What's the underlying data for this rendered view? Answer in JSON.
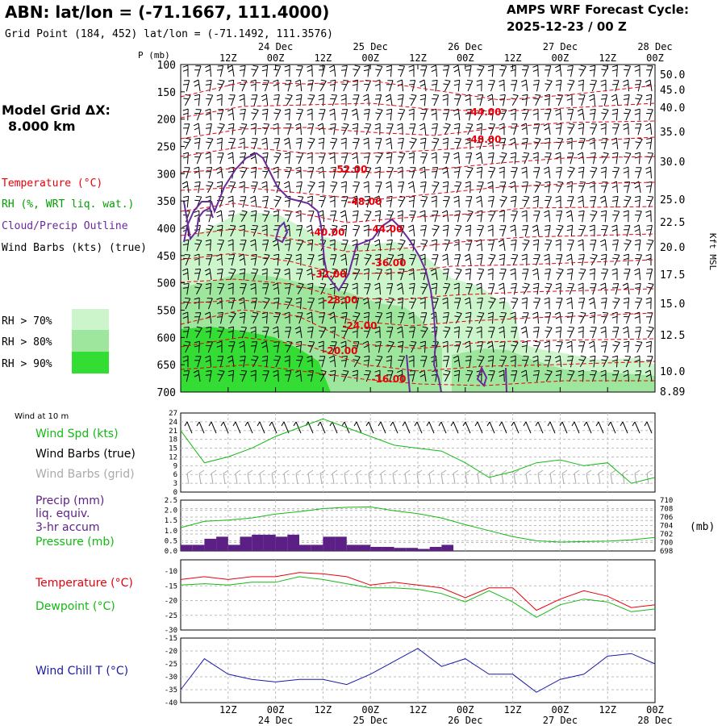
{
  "header": {
    "station_title": "ABN:  lat/lon = (-71.1667, 111.4000)",
    "grid_point": "Grid Point (184, 452) lat/lon = (-71.1492, 111.3576)",
    "cycle_label": "AMPS WRF Forecast Cycle:",
    "cycle_value": "2025-12-23 / 00  Z"
  },
  "colors": {
    "temperature": "#e8000b",
    "rh_label": "#00a000",
    "cloud": "#6a2a9a",
    "wind": "#000000",
    "rh70": "#ccf5cc",
    "rh80": "#9ee69e",
    "rh90": "#33dd33",
    "wind_grid": "#aaaaaa",
    "precip": "#5b1f86",
    "pressure": "#14b914",
    "dewpoint": "#14b914",
    "windchill": "#1a1aa6"
  },
  "time_axis": {
    "top_hours": [
      "12Z",
      "00Z",
      "12Z",
      "00Z",
      "12Z",
      "00Z",
      "12Z",
      "00Z",
      "12Z",
      "00Z"
    ],
    "top_dates": [
      "24 Dec",
      "25 Dec",
      "26 Dec",
      "27 Dec",
      "28 Dec"
    ],
    "bottom_hours": [
      "12Z",
      "00Z",
      "12Z",
      "00Z",
      "12Z",
      "00Z",
      "12Z",
      "00Z",
      "12Z",
      "00Z"
    ],
    "bottom_dates": [
      "24 Dec",
      "25 Dec",
      "26 Dec",
      "27 Dec",
      "28 Dec"
    ]
  },
  "legend": {
    "model_grid": "Model Grid ΔX:",
    "model_grid_value": "8.000 km",
    "temperature": "Temperature (°C)",
    "rh": "RH (%, WRT liq. wat.)",
    "cloud": "Cloud/Precip Outline",
    "wind": "Wind Barbs (kts) (true)",
    "rh70": "RH > 70%",
    "rh80": "RH > 80%",
    "rh90": "RH > 90%"
  },
  "cross_section": {
    "p_axis_title": "P (mb)",
    "p_levels": [
      "100",
      "150",
      "200",
      "250",
      "300",
      "350",
      "400",
      "450",
      "500",
      "550",
      "600",
      "650",
      "700"
    ],
    "kft_labels": [
      "50.0",
      "45.0",
      "40.0",
      "35.0",
      "30.0",
      "25.0",
      "22.5",
      "20.0",
      "17.5",
      "15.0",
      "12.5",
      "10.0",
      "8.89"
    ],
    "kft_title": "Kft MSL",
    "temp_labels": [
      "-44.00",
      "-48.00",
      "-52.00",
      "-48.00",
      "-40.00",
      "-44.00",
      "-36.00",
      "-32.00",
      "-28.00",
      "-24.00",
      "-20.00",
      "-16.00"
    ]
  },
  "panel_wind": {
    "title": "Wind at 10 m",
    "label_spd": "Wind Spd (kts)",
    "label_true": "Wind Barbs (true)",
    "label_grid": "Wind Barbs (grid)",
    "y_ticks": [
      "27",
      "24",
      "21",
      "18",
      "15",
      "12",
      "9",
      "6",
      "3",
      "0"
    ]
  },
  "panel_precip": {
    "label_precip": "Precip (mm)",
    "label_liq": "liq. equiv.",
    "label_accum": "3-hr accum",
    "label_pressure": "Pressure (mb)",
    "left_ticks": [
      "2.5",
      "2.0",
      "1.5",
      "1.0",
      "0.5",
      "0.0"
    ],
    "right_ticks": [
      "710",
      "708",
      "706",
      "704",
      "702",
      "700",
      "698"
    ],
    "unit": "(mb)"
  },
  "panel_temp": {
    "label_temp": "Temperature (°C)",
    "label_dew": "Dewpoint (°C)",
    "y_ticks": [
      "-10",
      "-15",
      "-20",
      "-25",
      "-30"
    ]
  },
  "panel_windchill": {
    "label": "Wind Chill T (°C)",
    "y_ticks": [
      "-15",
      "-20",
      "-25",
      "-30",
      "-35",
      "-40"
    ]
  },
  "chart_data": [
    {
      "type": "line",
      "title": "Wind at 10 m",
      "ylabel": "Wind Spd (kts)",
      "ylim": [
        0,
        27
      ],
      "x_hours": [
        0,
        6,
        12,
        18,
        24,
        30,
        36,
        42,
        48,
        54,
        60,
        66,
        72,
        78,
        84,
        90,
        96,
        102,
        108,
        114,
        120
      ],
      "series": [
        {
          "name": "Wind Spd (kts)",
          "values": [
            21,
            10,
            12,
            15,
            19,
            22,
            25,
            22,
            19,
            16,
            15,
            14,
            10,
            5,
            7,
            10,
            11,
            9,
            10,
            3,
            5
          ]
        }
      ]
    },
    {
      "type": "bar",
      "title": "Precip (mm) liq. equiv. 3-hr accum",
      "ylim": [
        0,
        2.5
      ],
      "x_hours": [
        3,
        6,
        9,
        12,
        15,
        18,
        21,
        24,
        27,
        30,
        33,
        36,
        39,
        42,
        45,
        48,
        51,
        54,
        57,
        60,
        63,
        66,
        69,
        72
      ],
      "values": [
        0.3,
        0.3,
        0.6,
        0.7,
        0.3,
        0.7,
        0.8,
        0.8,
        0.7,
        0.8,
        0.3,
        0.3,
        0.7,
        0.7,
        0.3,
        0.3,
        0.2,
        0.2,
        0.15,
        0.15,
        0.1,
        0.2,
        0.3,
        0.0
      ]
    },
    {
      "type": "line",
      "title": "Pressure (mb)",
      "ylim": [
        698,
        710
      ],
      "x_hours": [
        0,
        6,
        12,
        18,
        24,
        30,
        36,
        42,
        48,
        54,
        60,
        66,
        72,
        78,
        84,
        90,
        96,
        102,
        108,
        114,
        120
      ],
      "series": [
        {
          "name": "Pressure (mb)",
          "values": [
            703.5,
            705,
            705.3,
            705.8,
            706.7,
            707.3,
            708,
            708.3,
            708.4,
            707.5,
            706.8,
            705.8,
            704.2,
            702.8,
            701.4,
            700.4,
            700.1,
            700.2,
            700.3,
            700.6,
            701.2
          ]
        }
      ]
    },
    {
      "type": "line",
      "title": "Temperature / Dewpoint",
      "ylim": [
        -30,
        -5
      ],
      "x_hours": [
        0,
        6,
        12,
        18,
        24,
        30,
        36,
        42,
        48,
        54,
        60,
        66,
        72,
        78,
        84,
        90,
        96,
        102,
        108,
        114,
        120
      ],
      "series": [
        {
          "name": "Temperature (°C)",
          "values": [
            -12,
            -11,
            -12,
            -11,
            -11,
            -9.5,
            -10,
            -11,
            -14,
            -13,
            -14,
            -15,
            -18.5,
            -15,
            -15,
            -23,
            -19,
            -16,
            -18,
            -22,
            -21
          ]
        },
        {
          "name": "Dewpoint (°C)",
          "values": [
            -14,
            -13.5,
            -14,
            -13,
            -13,
            -11,
            -12,
            -13.5,
            -15,
            -15,
            -15.5,
            -17,
            -20,
            -16,
            -20,
            -25.5,
            -21,
            -19,
            -20,
            -23.5,
            -22.5
          ]
        }
      ]
    },
    {
      "type": "line",
      "title": "Wind Chill T",
      "ylim": [
        -40,
        -15
      ],
      "x_hours": [
        0,
        6,
        12,
        18,
        24,
        30,
        36,
        42,
        48,
        54,
        60,
        66,
        72,
        78,
        84,
        90,
        96,
        102,
        108,
        114,
        120
      ],
      "series": [
        {
          "name": "Wind Chill T (°C)",
          "values": [
            -35,
            -23,
            -29,
            -31,
            -32,
            -31,
            -31,
            -33,
            -29,
            -24,
            -19,
            -26,
            -23,
            -29,
            -29,
            -36,
            -31,
            -29,
            -22,
            -21,
            -25
          ]
        }
      ]
    }
  ]
}
